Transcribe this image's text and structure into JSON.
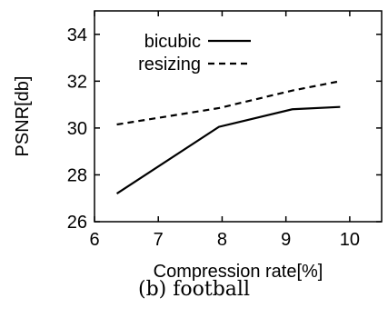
{
  "chart_data": {
    "type": "line",
    "xlabel": "Compression rate[%]",
    "ylabel": "PSNR[db]",
    "xlim": [
      6,
      10.5
    ],
    "ylim": [
      26,
      35
    ],
    "xticks": [
      6,
      7,
      8,
      9,
      10
    ],
    "yticks": [
      26,
      28,
      30,
      32,
      34
    ],
    "grid": false,
    "legend_position": "top-left",
    "series": [
      {
        "name": "bicubic",
        "style": "solid",
        "color": "#000000",
        "points": [
          {
            "x": 6.35,
            "y": 27.2
          },
          {
            "x": 7.95,
            "y": 30.05
          },
          {
            "x": 9.1,
            "y": 30.8
          },
          {
            "x": 9.85,
            "y": 30.9
          }
        ]
      },
      {
        "name": "resizing",
        "style": "dashed",
        "color": "#000000",
        "points": [
          {
            "x": 6.35,
            "y": 30.15
          },
          {
            "x": 7.95,
            "y": 30.85
          },
          {
            "x": 9.1,
            "y": 31.6
          },
          {
            "x": 9.85,
            "y": 32.0
          }
        ]
      }
    ]
  },
  "caption": "(b) football"
}
